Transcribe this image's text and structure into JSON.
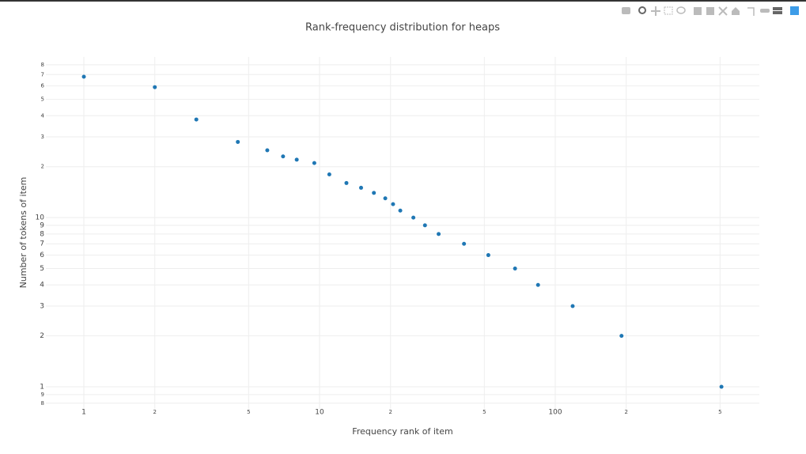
{
  "chart_data": {
    "type": "scatter",
    "title": "Rank-frequency distribution for heaps",
    "x_label": "Frequency rank of item",
    "y_label": "Number of tokens of item",
    "x_scale": "log",
    "y_scale": "log",
    "grid": true,
    "color": "#1f77b4",
    "xlim": [
      0.69,
      734
    ],
    "ylim": [
      0.74,
      89
    ],
    "xticks": [
      1,
      2,
      5,
      10,
      {
        "value": 20,
        "label": "2"
      },
      {
        "value": 50,
        "label": "5"
      },
      100,
      {
        "value": 200,
        "label": "2"
      },
      {
        "value": 500,
        "label": "5"
      }
    ],
    "yticks": [
      {
        "value": 0.8,
        "label": "8"
      },
      {
        "value": 0.9,
        "label": "9"
      },
      1,
      2,
      3,
      4,
      5,
      6,
      7,
      8,
      9,
      10,
      {
        "value": 20,
        "label": "2"
      },
      {
        "value": 30,
        "label": "3"
      },
      {
        "value": 40,
        "label": "4"
      },
      {
        "value": 50,
        "label": "5"
      },
      {
        "value": 60,
        "label": "6"
      },
      {
        "value": 70,
        "label": "7"
      },
      {
        "value": 80,
        "label": "8"
      }
    ],
    "x": [
      1,
      2,
      3,
      4.5,
      6,
      7,
      8,
      9.5,
      11,
      13,
      15,
      17,
      19,
      20.5,
      22,
      25,
      28,
      32,
      41,
      52,
      67.5,
      84.5,
      118.5,
      191,
      507
    ],
    "values": [
      68,
      59,
      38,
      28,
      25,
      23,
      22,
      21,
      18,
      16,
      15,
      14,
      13,
      12,
      11,
      10,
      9,
      8,
      7,
      6,
      5,
      4,
      3,
      2,
      1
    ]
  }
}
